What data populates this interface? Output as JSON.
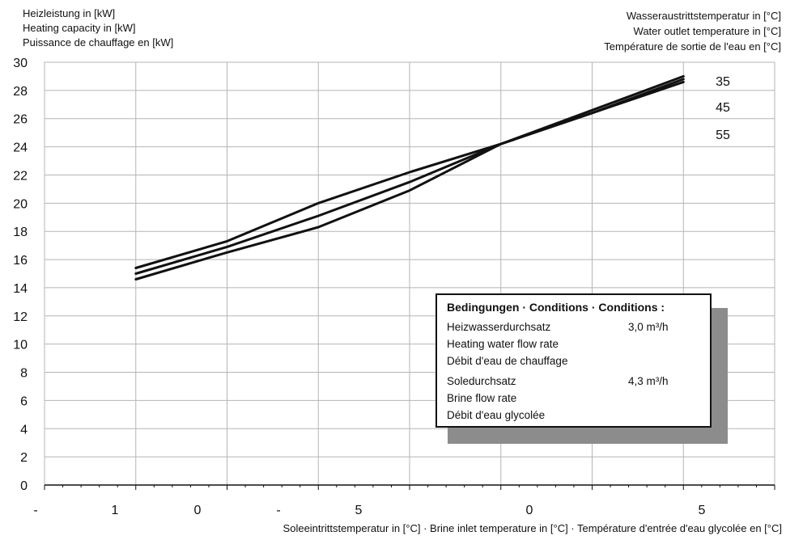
{
  "header_left": [
    "Heizleistung in [kW]",
    "Heating capacity in [kW]",
    "Puissance de chauffage en [kW]"
  ],
  "header_right": [
    "Wasseraustrittstemperatur in [°C]",
    "Water outlet temperature in [°C]",
    "Température de sortie de l'eau en [°C]"
  ],
  "conditions": {
    "title": "Bedingungen · Conditions · Conditions :",
    "flow_label_de": "Heizwasserdurchsatz",
    "flow_value": "3,0 m³/h",
    "flow_label_en": "Heating water flow rate",
    "flow_label_fr": "Débit d'eau de chauffage",
    "brine_label_de": "Soledurchsatz",
    "brine_value": "4,3 m³/h",
    "brine_label_en": "Brine flow rate",
    "brine_label_fr": "Débit d'eau glycolée"
  },
  "colors": {
    "line": "#111111",
    "grid": "#b5b5b5",
    "shadow": "#8c8c8c"
  },
  "chart_data": {
    "type": "line",
    "xlabel": "Soleeintrittstemperatur in [°C] · Brine inlet temperature in [°C] · Température d'entrée d'eau glycolée en [°C]",
    "ylabel": "Heizleistung in [kW]",
    "xlim": [
      -15,
      25
    ],
    "ylim": [
      0,
      30
    ],
    "x_tick_labels": [
      "-",
      "1",
      "0",
      "-",
      "5",
      "0",
      "5"
    ],
    "y_ticks": [
      0,
      2,
      4,
      6,
      8,
      10,
      12,
      14,
      16,
      18,
      20,
      22,
      24,
      26,
      28,
      30
    ],
    "grid": true,
    "series": [
      {
        "name": "35",
        "x": [
          -10,
          -5,
          0,
          5,
          10,
          15,
          20
        ],
        "y": [
          15.4,
          17.3,
          20.0,
          22.2,
          24.2,
          26.6,
          29.0
        ]
      },
      {
        "name": "45",
        "x": [
          -10,
          -5,
          0,
          5,
          10,
          15,
          20
        ],
        "y": [
          15.0,
          16.9,
          19.1,
          21.5,
          24.2,
          26.4,
          28.8
        ]
      },
      {
        "name": "55",
        "x": [
          -10,
          -5,
          0,
          5,
          10,
          15,
          20
        ],
        "y": [
          14.6,
          16.5,
          18.3,
          20.9,
          24.2,
          26.4,
          28.6
        ]
      }
    ]
  }
}
